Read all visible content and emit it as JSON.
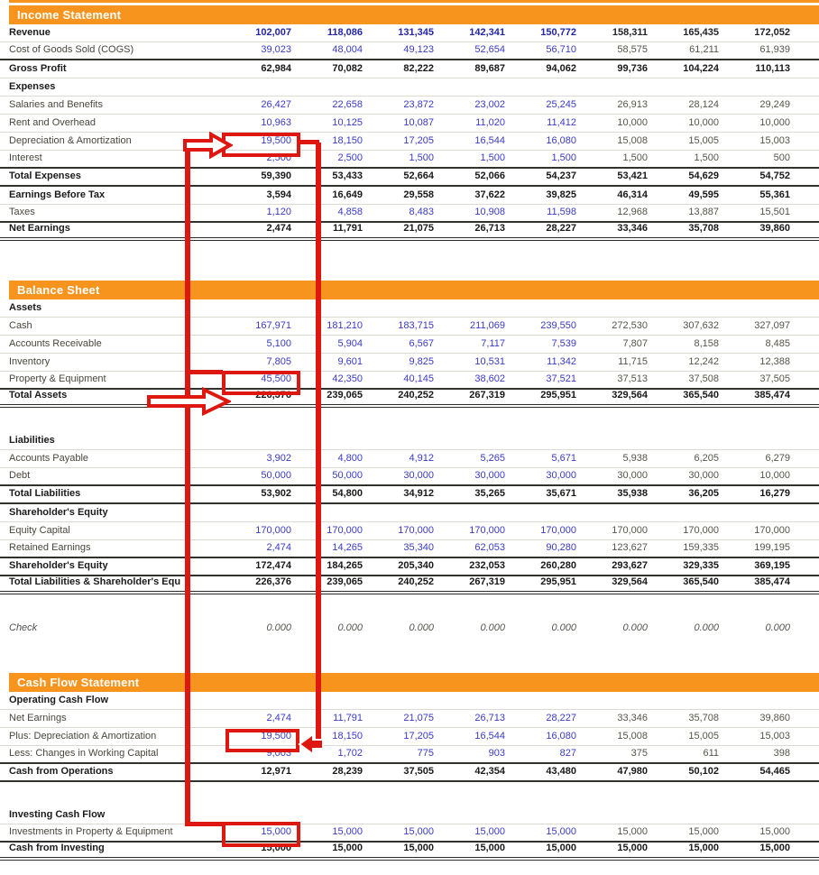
{
  "colors": {
    "accent_orange": "#F7941E",
    "annotation_red": "#DE1810",
    "historical_value_blue": "#3A3AC6",
    "forecast_value_gray": "#56544A",
    "total_black": "#191919"
  },
  "sections": [
    {
      "title": "Income Statement",
      "rows": [
        {
          "label": "Revenue",
          "type": "input-bold",
          "border": "light",
          "values": [
            "102,007",
            "118,086",
            "131,345",
            "142,341",
            "150,772",
            "158,311",
            "165,435",
            "172,052"
          ]
        },
        {
          "label": "Cost of Goods Sold (COGS)",
          "type": "input",
          "border": "dark",
          "values": [
            "39,023",
            "48,004",
            "49,123",
            "52,654",
            "56,710",
            "58,575",
            "61,211",
            "61,939"
          ]
        },
        {
          "label": "Gross Profit",
          "type": "total",
          "border": "light",
          "values": [
            "62,984",
            "70,082",
            "82,222",
            "89,687",
            "94,062",
            "99,736",
            "104,224",
            "110,113"
          ]
        },
        {
          "label": "Expenses",
          "type": "subheader",
          "border": "light",
          "values": []
        },
        {
          "label": "Salaries and Benefits",
          "type": "input",
          "border": "light",
          "values": [
            "26,427",
            "22,658",
            "23,872",
            "23,002",
            "25,245",
            "26,913",
            "28,124",
            "29,249"
          ]
        },
        {
          "label": "Rent and Overhead",
          "type": "input",
          "border": "light",
          "values": [
            "10,963",
            "10,125",
            "10,087",
            "11,020",
            "11,412",
            "10,000",
            "10,000",
            "10,000"
          ]
        },
        {
          "label": "Depreciation & Amortization",
          "type": "input",
          "border": "light",
          "values": [
            "19,500",
            "18,150",
            "17,205",
            "16,544",
            "16,080",
            "15,008",
            "15,005",
            "15,003"
          ]
        },
        {
          "label": "Interest",
          "type": "input",
          "border": "dark",
          "values": [
            "2,500",
            "2,500",
            "1,500",
            "1,500",
            "1,500",
            "1,500",
            "1,500",
            "500"
          ]
        },
        {
          "label": "Total Expenses",
          "type": "total",
          "border": "dark",
          "values": [
            "59,390",
            "53,433",
            "52,664",
            "52,066",
            "54,237",
            "53,421",
            "54,629",
            "54,752"
          ]
        },
        {
          "label": "Earnings Before Tax",
          "type": "total",
          "border": "light",
          "values": [
            "3,594",
            "16,649",
            "29,558",
            "37,622",
            "39,825",
            "46,314",
            "49,595",
            "55,361"
          ]
        },
        {
          "label": "Taxes",
          "type": "input",
          "border": "dark",
          "values": [
            "1,120",
            "4,858",
            "8,483",
            "10,908",
            "11,598",
            "12,968",
            "13,887",
            "15,501"
          ]
        },
        {
          "label": "Net Earnings",
          "type": "total",
          "border": "double",
          "values": [
            "2,474",
            "11,791",
            "21,075",
            "26,713",
            "28,227",
            "33,346",
            "35,708",
            "39,860"
          ]
        }
      ]
    },
    {
      "title": "Balance Sheet",
      "rows": [
        {
          "label": "Assets",
          "type": "subheader",
          "border": "light",
          "values": []
        },
        {
          "label": "Cash",
          "type": "input",
          "border": "light",
          "values": [
            "167,971",
            "181,210",
            "183,715",
            "211,069",
            "239,550",
            "272,530",
            "307,632",
            "327,097"
          ]
        },
        {
          "label": "Accounts Receivable",
          "type": "input",
          "border": "light",
          "values": [
            "5,100",
            "5,904",
            "6,567",
            "7,117",
            "7,539",
            "7,807",
            "8,158",
            "8,485"
          ]
        },
        {
          "label": "Inventory",
          "type": "input",
          "border": "light",
          "values": [
            "7,805",
            "9,601",
            "9,825",
            "10,531",
            "11,342",
            "11,715",
            "12,242",
            "12,388"
          ]
        },
        {
          "label": "Property & Equipment",
          "type": "input",
          "border": "dark",
          "values": [
            "45,500",
            "42,350",
            "40,145",
            "38,602",
            "37,521",
            "37,513",
            "37,508",
            "37,505"
          ]
        },
        {
          "label": "Total Assets",
          "type": "total",
          "border": "double",
          "values": [
            "226,376",
            "239,065",
            "240,252",
            "267,319",
            "295,951",
            "329,564",
            "365,540",
            "385,474"
          ]
        },
        {
          "label": "Liabilities",
          "type": "subheader",
          "border": "light",
          "spacer_before": true,
          "values": []
        },
        {
          "label": "Accounts Payable",
          "type": "input",
          "border": "light",
          "values": [
            "3,902",
            "4,800",
            "4,912",
            "5,265",
            "5,671",
            "5,938",
            "6,205",
            "6,279"
          ]
        },
        {
          "label": "Debt",
          "type": "input",
          "border": "dark",
          "values": [
            "50,000",
            "50,000",
            "30,000",
            "30,000",
            "30,000",
            "30,000",
            "30,000",
            "10,000"
          ]
        },
        {
          "label": "Total Liabilities",
          "type": "total",
          "border": "dark",
          "values": [
            "53,902",
            "54,800",
            "34,912",
            "35,265",
            "35,671",
            "35,938",
            "36,205",
            "16,279"
          ]
        },
        {
          "label": "Shareholder's Equity",
          "type": "subheader",
          "border": "light",
          "values": []
        },
        {
          "label": "Equity Capital",
          "type": "input",
          "border": "light",
          "values": [
            "170,000",
            "170,000",
            "170,000",
            "170,000",
            "170,000",
            "170,000",
            "170,000",
            "170,000"
          ]
        },
        {
          "label": "Retained Earnings",
          "type": "input",
          "border": "dark",
          "values": [
            "2,474",
            "14,265",
            "35,340",
            "62,053",
            "90,280",
            "123,627",
            "159,335",
            "199,195"
          ]
        },
        {
          "label": "Shareholder's Equity",
          "type": "total",
          "border": "dark",
          "values": [
            "172,474",
            "184,265",
            "205,340",
            "232,053",
            "260,280",
            "293,627",
            "329,335",
            "369,195"
          ]
        },
        {
          "label": "Total Liabilities & Shareholder's Equ",
          "type": "total",
          "border": "double",
          "values": [
            "226,376",
            "239,065",
            "240,252",
            "267,319",
            "295,951",
            "329,564",
            "365,540",
            "385,474"
          ]
        },
        {
          "label": "Check",
          "type": "check",
          "border": "none",
          "spacer_before": true,
          "values": [
            "0.000",
            "0.000",
            "0.000",
            "0.000",
            "0.000",
            "0.000",
            "0.000",
            "0.000"
          ]
        }
      ]
    },
    {
      "title": "Cash Flow Statement",
      "rows": [
        {
          "label": "Operating Cash Flow",
          "type": "subheader",
          "border": "light",
          "values": []
        },
        {
          "label": "Net Earnings",
          "type": "input",
          "border": "light",
          "values": [
            "2,474",
            "11,791",
            "21,075",
            "26,713",
            "28,227",
            "33,346",
            "35,708",
            "39,860"
          ]
        },
        {
          "label": "Plus: Depreciation & Amortization",
          "type": "input",
          "border": "light",
          "values": [
            "19,500",
            "18,150",
            "17,205",
            "16,544",
            "16,080",
            "15,008",
            "15,005",
            "15,003"
          ]
        },
        {
          "label": "Less: Changes in Working Capital",
          "type": "input",
          "border": "dark",
          "values": [
            "9,003",
            "1,702",
            "775",
            "903",
            "827",
            "375",
            "611",
            "398"
          ]
        },
        {
          "label": "Cash from Operations",
          "type": "total",
          "border": "dark",
          "values": [
            "12,971",
            "28,239",
            "37,505",
            "42,354",
            "43,480",
            "47,980",
            "50,102",
            "54,465"
          ]
        },
        {
          "label": "Investing Cash Flow",
          "type": "subheader",
          "border": "light",
          "spacer_before": true,
          "values": []
        },
        {
          "label": "Investments in Property & Equipment",
          "type": "input",
          "border": "dark",
          "values": [
            "15,000",
            "15,000",
            "15,000",
            "15,000",
            "15,000",
            "15,000",
            "15,000",
            "15,000"
          ]
        },
        {
          "label": "Cash from Investing",
          "type": "total",
          "border": "double",
          "values": [
            "15,000",
            "15,000",
            "15,000",
            "15,000",
            "15,000",
            "15,000",
            "15,000",
            "15,000"
          ]
        }
      ]
    }
  ],
  "annotations": {
    "color": "#DE1810",
    "highlights": [
      {
        "name": "da-income",
        "section": "Income Statement",
        "row": "Depreciation & Amortization",
        "value": "19,500"
      },
      {
        "name": "ppe-balance",
        "section": "Balance Sheet",
        "row": "Property & Equipment",
        "value": "45,500"
      },
      {
        "name": "da-cashflow",
        "section": "Cash Flow Statement",
        "row": "Plus: Depreciation & Amortization",
        "value": "19,500"
      },
      {
        "name": "capex-cashflow",
        "section": "Cash Flow Statement",
        "row": "Investments in Property & Equipment",
        "value": "15,000"
      }
    ]
  }
}
